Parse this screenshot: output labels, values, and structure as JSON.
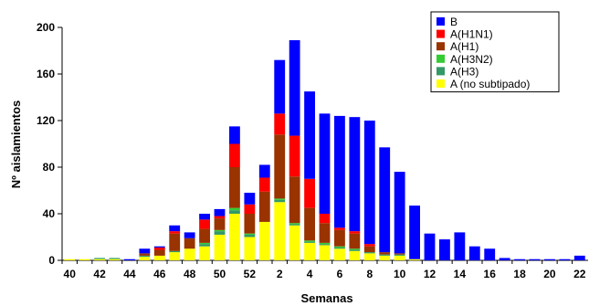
{
  "chart_data": {
    "type": "bar",
    "stacked": true,
    "xlabel": "Semanas",
    "ylabel": "Nº aislamientos",
    "ylim": [
      0,
      200
    ],
    "yticks": [
      0,
      40,
      80,
      120,
      160,
      200
    ],
    "x_tick_labels": [
      "40",
      "42",
      "44",
      "46",
      "48",
      "50",
      "52",
      "2",
      "4",
      "6",
      "8",
      "10",
      "12",
      "14",
      "16",
      "18",
      "20",
      "22"
    ],
    "legend_position": "top-right",
    "grid": false,
    "categories": [
      "40",
      "41",
      "42",
      "43",
      "44",
      "45",
      "46",
      "47",
      "48",
      "49",
      "50",
      "51",
      "52",
      "1",
      "2",
      "3",
      "4",
      "5",
      "6",
      "7",
      "8",
      "9",
      "10",
      "11",
      "12",
      "13",
      "14",
      "15",
      "16",
      "17",
      "18",
      "19",
      "20",
      "21",
      "22"
    ],
    "series": [
      {
        "name": "A (no subtipado)",
        "color": "#ffff00",
        "values": [
          1,
          1,
          1,
          1,
          0,
          3,
          4,
          7,
          10,
          12,
          22,
          40,
          20,
          33,
          50,
          30,
          15,
          13,
          10,
          8,
          6,
          4,
          4,
          1,
          0,
          0,
          0,
          0,
          0,
          0,
          0,
          0,
          0,
          0,
          0
        ]
      },
      {
        "name": "A(H3)",
        "color": "#339966",
        "values": [
          0,
          0,
          1,
          1,
          0,
          1,
          0,
          1,
          0,
          2,
          3,
          3,
          2,
          0,
          2,
          1,
          1,
          1,
          1,
          1,
          1,
          1,
          1,
          0,
          0,
          0,
          0,
          0,
          0,
          0,
          0,
          0,
          0,
          0,
          0
        ]
      },
      {
        "name": "A(H3N2)",
        "color": "#33cc33",
        "values": [
          0,
          0,
          0,
          0,
          0,
          0,
          0,
          0,
          0,
          1,
          1,
          2,
          1,
          0,
          1,
          1,
          1,
          1,
          1,
          1,
          0,
          0,
          0,
          0,
          0,
          0,
          0,
          0,
          0,
          0,
          0,
          0,
          0,
          0,
          0
        ]
      },
      {
        "name": "A(H1)",
        "color": "#993300",
        "values": [
          0,
          0,
          0,
          0,
          0,
          2,
          5,
          15,
          9,
          12,
          10,
          35,
          17,
          26,
          55,
          40,
          28,
          17,
          14,
          13,
          5,
          2,
          1,
          0,
          0,
          0,
          0,
          0,
          0,
          0,
          0,
          0,
          0,
          0,
          0
        ]
      },
      {
        "name": "A(H1N1)",
        "color": "#ff0000",
        "values": [
          0,
          0,
          0,
          0,
          0,
          0,
          2,
          2,
          0,
          8,
          2,
          20,
          8,
          12,
          18,
          35,
          25,
          8,
          2,
          2,
          2,
          0,
          0,
          0,
          0,
          0,
          0,
          0,
          0,
          0,
          0,
          0,
          0,
          0,
          0
        ]
      },
      {
        "name": "B",
        "color": "#0000ff",
        "values": [
          0,
          0,
          0,
          0,
          1,
          4,
          1,
          5,
          5,
          5,
          6,
          15,
          10,
          11,
          46,
          82,
          75,
          86,
          96,
          98,
          106,
          90,
          70,
          46,
          23,
          18,
          24,
          12,
          10,
          2,
          1,
          1,
          1,
          1,
          4
        ]
      }
    ]
  }
}
